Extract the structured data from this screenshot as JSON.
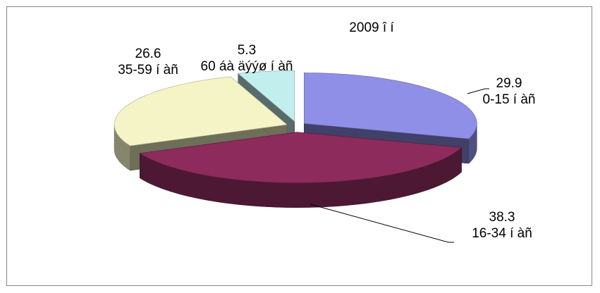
{
  "chart_data": {
    "type": "pie3d",
    "title": "2009 î í",
    "categories": [
      "0-15 í àñ",
      "16-34 í àñ",
      "35-59 í àñ",
      "60 áà äýýø í àñ"
    ],
    "values": [
      29.9,
      38.3,
      26.6,
      5.3
    ],
    "colors": [
      "#8f8fe8",
      "#8c2b5c",
      "#f4f4c6",
      "#c2eeee"
    ]
  }
}
